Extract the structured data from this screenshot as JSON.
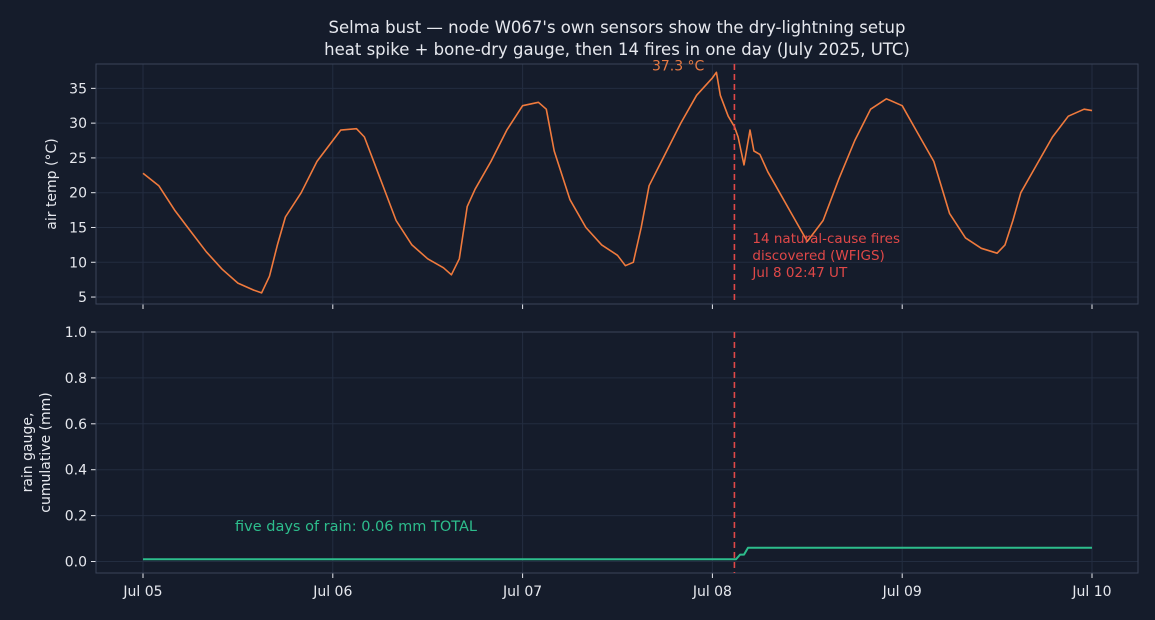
{
  "colors": {
    "background": "#151c2b",
    "axes_face": "#151c2b",
    "axes_edge": "#3a4459",
    "grid": "#232d40",
    "text": "#e6e8ee",
    "temperature": "#f07a3d",
    "rain": "#2dbd8c",
    "fire_marker": "#e04848",
    "peak_label": "#e77a44"
  },
  "title_line1": "Selma bust — node W067's own sensors show the dry-lightning setup",
  "title_line2": "heat spike + bone-dry gauge, then 14 fires in one day (July 2025, UTC)",
  "chart_data": [
    {
      "type": "line",
      "panel": "top",
      "ylabel": "air temp (°C)",
      "ylim": [
        4,
        38.5
      ],
      "yticks": [
        5,
        10,
        15,
        20,
        25,
        30,
        35
      ],
      "x_range_days": [
        "Jul 05 00:00",
        "Jul 10 00:00"
      ],
      "series": [
        {
          "color": "temperature",
          "points": [
            [
              "Jul 05 00:00",
              22.8
            ],
            [
              "Jul 05 02:00",
              21.0
            ],
            [
              "Jul 05 04:00",
              17.5
            ],
            [
              "Jul 05 06:00",
              14.5
            ],
            [
              "Jul 05 08:00",
              11.5
            ],
            [
              "Jul 05 10:00",
              9.0
            ],
            [
              "Jul 05 12:00",
              7.0
            ],
            [
              "Jul 05 14:00",
              6.0
            ],
            [
              "Jul 05 15:00",
              5.6
            ],
            [
              "Jul 05 16:00",
              8.0
            ],
            [
              "Jul 05 17:00",
              12.5
            ],
            [
              "Jul 05 18:00",
              16.5
            ],
            [
              "Jul 05 20:00",
              20.0
            ],
            [
              "Jul 05 22:00",
              24.5
            ],
            [
              "Jul 06 00:00",
              27.5
            ],
            [
              "Jul 06 01:00",
              29.0
            ],
            [
              "Jul 06 03:00",
              29.2
            ],
            [
              "Jul 06 04:00",
              28.0
            ],
            [
              "Jul 06 06:00",
              22.0
            ],
            [
              "Jul 06 08:00",
              16.0
            ],
            [
              "Jul 06 10:00",
              12.5
            ],
            [
              "Jul 06 12:00",
              10.5
            ],
            [
              "Jul 06 14:00",
              9.2
            ],
            [
              "Jul 06 15:00",
              8.2
            ],
            [
              "Jul 06 16:00",
              10.5
            ],
            [
              "Jul 06 17:00",
              18.0
            ],
            [
              "Jul 06 18:00",
              20.5
            ],
            [
              "Jul 06 20:00",
              24.5
            ],
            [
              "Jul 06 22:00",
              29.0
            ],
            [
              "Jul 07 00:00",
              32.5
            ],
            [
              "Jul 07 02:00",
              33.0
            ],
            [
              "Jul 07 03:00",
              32.0
            ],
            [
              "Jul 07 04:00",
              26.0
            ],
            [
              "Jul 07 06:00",
              19.0
            ],
            [
              "Jul 07 08:00",
              15.0
            ],
            [
              "Jul 07 10:00",
              12.5
            ],
            [
              "Jul 07 12:00",
              11.0
            ],
            [
              "Jul 07 13:00",
              9.5
            ],
            [
              "Jul 07 14:00",
              10.0
            ],
            [
              "Jul 07 15:00",
              15.0
            ],
            [
              "Jul 07 16:00",
              21.0
            ],
            [
              "Jul 07 18:00",
              25.5
            ],
            [
              "Jul 07 20:00",
              30.0
            ],
            [
              "Jul 07 22:00",
              34.0
            ],
            [
              "Jul 08 00:00",
              36.5
            ],
            [
              "Jul 08 00:30",
              37.3
            ],
            [
              "Jul 08 01:00",
              34.0
            ],
            [
              "Jul 08 02:00",
              31.0
            ],
            [
              "Jul 08 02:47",
              29.5
            ],
            [
              "Jul 08 03:15",
              28.0
            ],
            [
              "Jul 08 04:00",
              24.0
            ],
            [
              "Jul 08 04:45",
              29.0
            ],
            [
              "Jul 08 05:15",
              26.0
            ],
            [
              "Jul 08 06:00",
              25.5
            ],
            [
              "Jul 08 07:00",
              23.0
            ],
            [
              "Jul 08 08:00",
              21.0
            ],
            [
              "Jul 08 10:00",
              17.0
            ],
            [
              "Jul 08 12:00",
              13.0
            ],
            [
              "Jul 08 13:00",
              14.5
            ],
            [
              "Jul 08 14:00",
              16.0
            ],
            [
              "Jul 08 16:00",
              22.0
            ],
            [
              "Jul 08 18:00",
              27.5
            ],
            [
              "Jul 08 20:00",
              32.0
            ],
            [
              "Jul 08 22:00",
              33.5
            ],
            [
              "Jul 09 00:00",
              32.5
            ],
            [
              "Jul 09 02:00",
              28.5
            ],
            [
              "Jul 09 04:00",
              24.5
            ],
            [
              "Jul 09 06:00",
              17.0
            ],
            [
              "Jul 09 08:00",
              13.5
            ],
            [
              "Jul 09 10:00",
              12.0
            ],
            [
              "Jul 09 12:00",
              11.3
            ],
            [
              "Jul 09 13:00",
              12.5
            ],
            [
              "Jul 09 14:00",
              16.0
            ],
            [
              "Jul 09 15:00",
              20.0
            ],
            [
              "Jul 09 17:00",
              24.0
            ],
            [
              "Jul 09 19:00",
              28.0
            ],
            [
              "Jul 09 21:00",
              31.0
            ],
            [
              "Jul 09 23:00",
              32.0
            ],
            [
              "Jul 10 00:00",
              31.8
            ]
          ]
        }
      ],
      "annotations": [
        {
          "text": "37.3 °C",
          "x": "Jul 08 00:30",
          "y": 37.3
        }
      ]
    },
    {
      "type": "line",
      "panel": "bottom",
      "ylabel_line1": "rain gauge,",
      "ylabel_line2": "cumulative (mm)",
      "ylim": [
        -0.05,
        1.0
      ],
      "yticks": [
        0.0,
        0.2,
        0.4,
        0.6,
        0.8,
        1.0
      ],
      "ytick_labels": [
        "0.0",
        "0.2",
        "0.4",
        "0.6",
        "0.8",
        "1.0"
      ],
      "xtick_labels": [
        "Jul 05",
        "Jul 06",
        "Jul 07",
        "Jul 08",
        "Jul 09",
        "Jul 10"
      ],
      "series": [
        {
          "color": "rain",
          "points": [
            [
              "Jul 05 00:00",
              0.01
            ],
            [
              "Jul 08 03:00",
              0.01
            ],
            [
              "Jul 08 03:30",
              0.03
            ],
            [
              "Jul 08 04:00",
              0.03
            ],
            [
              "Jul 08 04:30",
              0.06
            ],
            [
              "Jul 10 00:00",
              0.06
            ]
          ]
        }
      ],
      "annotations": [
        {
          "text": "five days of rain: 0.06 mm TOTAL"
        }
      ]
    }
  ],
  "fire_event": {
    "time": "Jul 08 02:47",
    "label_line1": "14 natural-cause fires",
    "label_line2": "discovered (WFIGS)",
    "label_line3": "Jul 8 02:47 UT"
  }
}
